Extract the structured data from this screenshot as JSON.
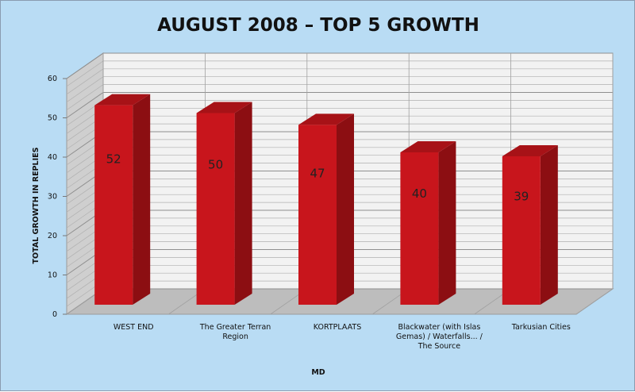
{
  "chart_data": {
    "type": "bar",
    "title": "AUGUST 2008 – TOP 5 GROWTH",
    "xlabel": "MD",
    "ylabel": "TOTAL GROWTH IN REPLIES",
    "categories": [
      [
        "WEST END"
      ],
      [
        "The Greater Terran",
        "Region"
      ],
      [
        "KORTPLAATS"
      ],
      [
        "Blackwater (with Islas",
        "Gemas) / Waterfalls... /",
        "The Source"
      ],
      [
        "Tarkusian Cities"
      ]
    ],
    "values": [
      52,
      50,
      47,
      40,
      39
    ],
    "data_labels": [
      "52",
      "50",
      "47",
      "40",
      "39"
    ],
    "ylim": [
      0,
      60
    ],
    "yticks": [
      0,
      10,
      20,
      30,
      40,
      50,
      60
    ],
    "grid": true,
    "three_d": true,
    "legend": "none",
    "colors": {
      "background": "#b9dcf4",
      "bar_front": "#c8151c",
      "bar_side": "#8c0e12",
      "bar_top": "#a71217",
      "back_wall": "#f2f2f2",
      "side_wall": "#cfcfcf",
      "floor": "#bdbdbd",
      "grid": "#b0b0b0"
    }
  }
}
